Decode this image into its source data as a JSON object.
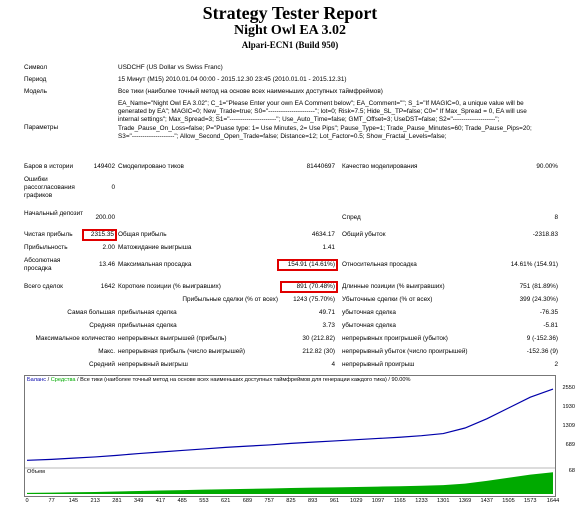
{
  "header": {
    "title": "Strategy Tester Report",
    "ea": "Night Owl EA 3.02",
    "server": "Alpari-ECN1 (Build 950)"
  },
  "rows": {
    "symbol": {
      "label": "Символ",
      "value": "USDCHF (US Dollar vs Swiss Franc)"
    },
    "period": {
      "label": "Период",
      "value": "15 Минут (M15) 2010.01.04 00:00 - 2015.12.30 23:45 (2010.01.01 - 2015.12.31)"
    },
    "model": {
      "label": "Модель",
      "value": "Все тики (наиболее точный метод на основе всех наименьших доступных таймфреймов)"
    },
    "params": {
      "label": "Параметры",
      "value": "EA_Name=\"Night Owl EA 3.02\"; C_1=\"Please Enter your own EA Comment below\"; EA_Comment=\"\"; S_1=\"If MAGIC=0, a unique value will be generated by EA\"; MAGIC=0; New_Trade=true; S0=\"----------------------\"; lot=0; Risk=7.5; Hide_SL_TP=false; C0=\" If Max_Spread = 0, EA will use internal settings\"; Max_Spread=3; S1=\"----------------------\"; Use_Auto_Time=false; GMT_Offset=3; UseDST=false; S2=\"--------------------\"; Trade_Pause_On_Loss=false; P=\"Puase type: 1= Use Minutes, 2= Use Pips\"; Pause_Type=1; Trade_Pause_Minutes=60; Trade_Pause_Pips=20; S3=\"--------------------\"; Allow_Second_Open_Trade=false; Distance=12; Lot_Factor=0.5; Show_Fractal_Levels=false;"
    },
    "bars": {
      "label": "Баров в истории",
      "value": "149402",
      "label2": "Смоделировано тиков",
      "value2": "81440697",
      "label3": "Качество моделирования",
      "value3": "90.00%"
    },
    "errors": {
      "label": "Ошибки рассогласования графиков",
      "value": "0"
    },
    "deposit": {
      "label": "Начальный депозит",
      "value": "200.00",
      "label3": "Спред",
      "value3": "8"
    },
    "profit": {
      "label": "Чистая прибыль",
      "value": "2315.35",
      "label2": "Общая прибыль",
      "value2": "4634.17",
      "label3": "Общий убыток",
      "value3": "-2318.83"
    },
    "pf": {
      "label": "Прибыльность",
      "value": "2.00",
      "label2": "Матожидание выигрыша",
      "value2": "1.41"
    },
    "abs_dd": {
      "label": "Абсолютная просадка",
      "value": "13.46",
      "label2": "Максимальная просадка",
      "value2": "154.91 (14.61%)",
      "label3": "Относительная просадка",
      "value3": "14.61% (154.91)"
    },
    "trades": {
      "label": "Всего сделок",
      "value": "1642",
      "label2": "Короткие позиции (% выигравших)",
      "value2": "891 (70.48%)",
      "label3": "Длинные позиции (% выигравших)",
      "value3": "751 (81.89%)"
    },
    "win": {
      "label2": "Прибыльные сделки (% от всех)",
      "value2": "1243 (75.70%)",
      "label3": "Убыточные сделки (% от всех)",
      "value3": "399 (24.30%)"
    },
    "largest": {
      "label1": "Самая большая",
      "label2": "прибыльная сделка",
      "value2": "49.71",
      "label3": "убыточная сделка",
      "value3": "-76.35"
    },
    "average": {
      "label1": "Средняя",
      "label2": "прибыльная сделка",
      "value2": "3.73",
      "label3": "убыточная сделка",
      "value3": "-5.81"
    },
    "max_cons": {
      "label1": "Максимальное количество",
      "label2": "непрерывных выигрышей (прибыль)",
      "value2": "30 (212.82)",
      "label3": "непрерывных проигрышей (убыток)",
      "value3": "9 (-152.36)"
    },
    "max_cons2": {
      "label1": "Макс.",
      "label2": "непрерывная прибыль (число выигрышей)",
      "value2": "212.82 (30)",
      "label3": "непрерывный убыток (число проигрышей)",
      "value3": "-152.36 (9)"
    },
    "avg_cons": {
      "label1": "Средний",
      "label2": "непрерывный выигрыш",
      "value2": "4",
      "label3": "непрерывный проигрыш",
      "value3": "2"
    }
  },
  "chart_data": {
    "type": "line",
    "title_balance": "Баланс",
    "title_equity": "Средства",
    "title_rest": "Все тики (наиболее точный метод на основе всех наименьших доступных таймфреймов для генерации каждого тика) / 90.00%",
    "volume_label": "Объем",
    "ylim": [
      80,
      2550
    ],
    "yticks": [
      2550,
      1930,
      1309,
      689,
      68
    ],
    "xticks": [
      0,
      77,
      145,
      213,
      281,
      349,
      417,
      485,
      553,
      621,
      689,
      757,
      825,
      893,
      961,
      1029,
      1097,
      1165,
      1233,
      1301,
      1369,
      1437,
      1505,
      1573,
      1644
    ],
    "xlim": [
      0,
      1644
    ],
    "series": [
      {
        "name": "Баланс",
        "color": "#0000aa",
        "x": [
          0,
          77,
          145,
          213,
          281,
          349,
          417,
          485,
          553,
          621,
          689,
          757,
          825,
          893,
          961,
          1029,
          1097,
          1165,
          1233,
          1301,
          1369,
          1437,
          1505,
          1573,
          1644
        ],
        "values": [
          200,
          230,
          270,
          310,
          360,
          420,
          470,
          520,
          570,
          620,
          660,
          700,
          750,
          790,
          830,
          870,
          910,
          950,
          1000,
          1070,
          1250,
          1550,
          1900,
          2250,
          2515
        ]
      }
    ],
    "volume_color": "#00aa00"
  }
}
